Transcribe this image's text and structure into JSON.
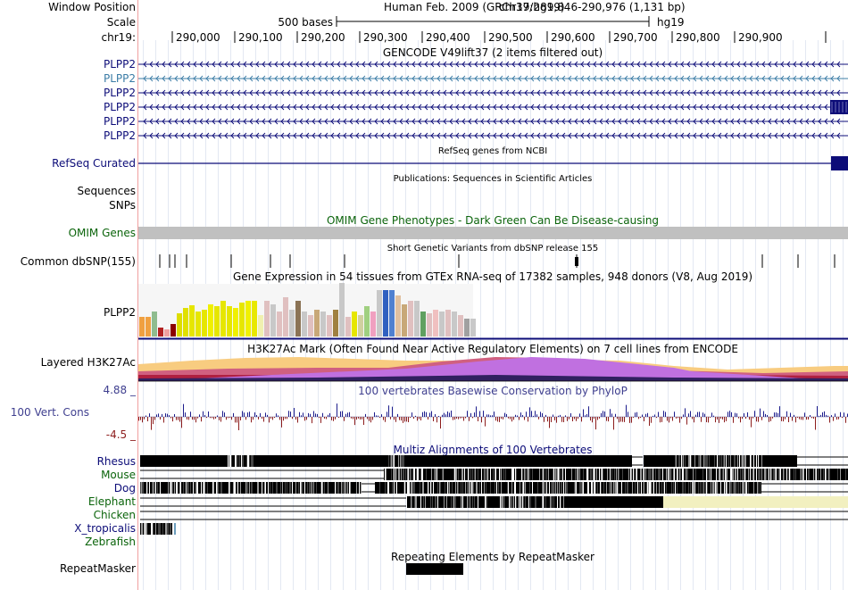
{
  "labels": {
    "window_position": "Window Position",
    "scale": "Scale",
    "chrom": "chr19:",
    "gencode_items": [
      "PLPP2",
      "PLPP2",
      "PLPP2",
      "PLPP2",
      "PLPP2",
      "PLPP2"
    ],
    "refseq": "RefSeq Curated",
    "sequences": "Sequences",
    "snps": "SNPs",
    "omim": "OMIM Genes",
    "dbsnp": "Common dbSNP(155)",
    "gtex": "PLPP2",
    "h3k27ac": "Layered H3K27Ac",
    "cons_max": "4.88 _",
    "cons_label": "100 Vert. Cons",
    "cons_min": "-4.5 _",
    "species": [
      "Rhesus",
      "Mouse",
      "Dog",
      "Elephant",
      "Chicken",
      "X_tropicalis",
      "Zebrafish"
    ],
    "repeatmasker": "RepeatMasker"
  },
  "header": {
    "assembly": "Human Feb. 2009 (GRCh37/hg19)",
    "position": "chr19:289,846-290,976 (1,131 bp)",
    "scale_text": "500 bases",
    "db": "hg19",
    "ticks": [
      "290,000",
      "290,100",
      "290,200",
      "290,300",
      "290,400",
      "290,500",
      "290,600",
      "290,700",
      "290,800",
      "290,900"
    ]
  },
  "titles": {
    "gencode": "GENCODE V49lift37 (2 items filtered out)",
    "refseq": "RefSeq genes from NCBI",
    "publications": "Publications: Sequences in Scientific Articles",
    "omim": "OMIM Gene Phenotypes - Dark Green Can Be Disease-causing",
    "dbsnp": "Short Genetic Variants from dbSNP release 155",
    "gtex": "Gene Expression in 54 tissues from GTEx RNA-seq of 17382 samples, 948 donors (V8, Aug 2019)",
    "h3k27ac": "H3K27Ac Mark (Often Found Near Active Regulatory Elements) on 7 cell lines from ENCODE",
    "cons": "100 vertebrates Basewise Conservation by PhyloP",
    "multiz": "Multiz Alignments of 100 Vertebrates",
    "repeatmasker": "Repeating Elements by RepeatMasker"
  },
  "colors": {
    "gencode": "#0c0c78",
    "gencode_alt": "#3b7ca6",
    "refseq_label": "#0c0c78",
    "omim": "#0b640b",
    "omim_bar": "#c0c0c0",
    "cons_label": "#3f3f8f",
    "cons_pos": "#1c1c8c",
    "cons_neg": "#8c1c1c",
    "green_label": "#0b640b",
    "guide": "#dfe4f0",
    "divider": "#f0a0a0"
  }
}
